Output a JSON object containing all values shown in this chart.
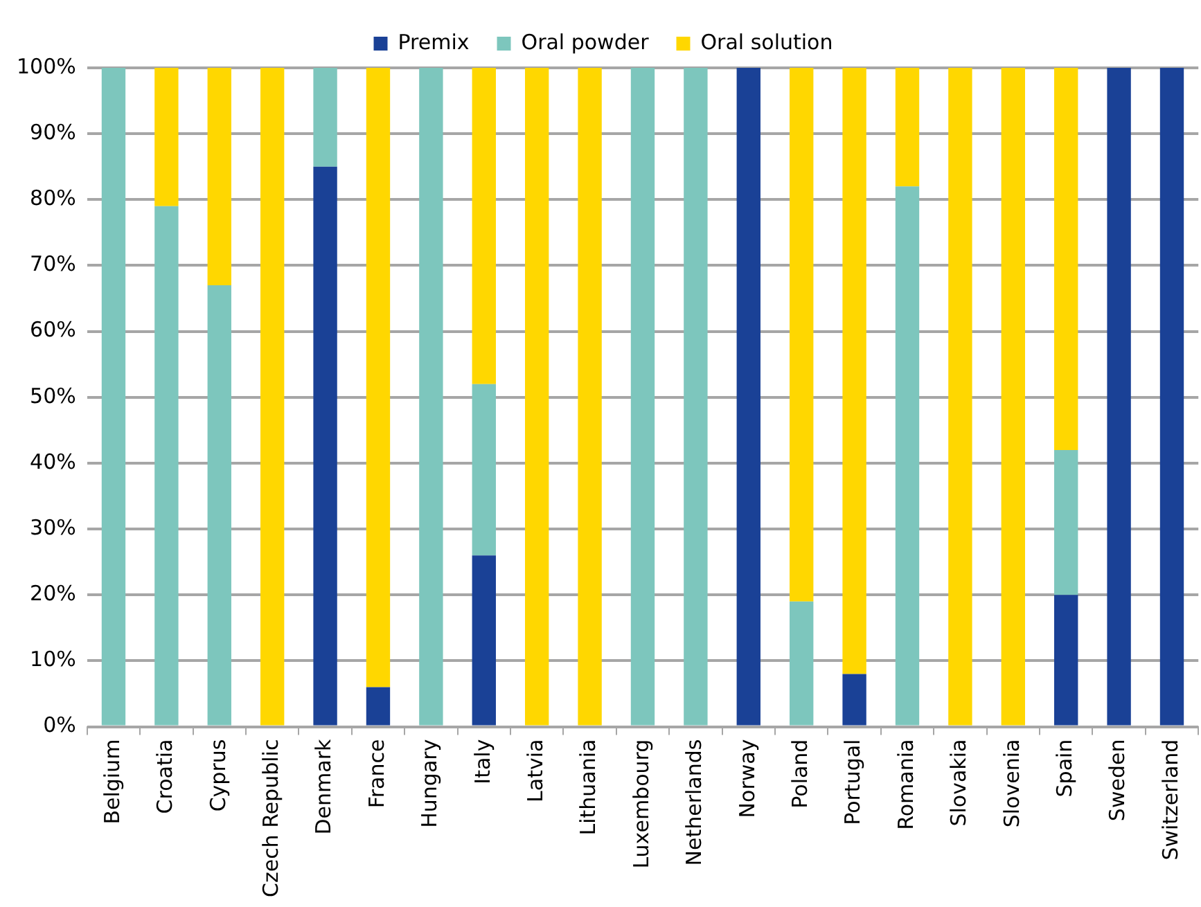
{
  "chart_data": {
    "type": "bar",
    "stacked": true,
    "categories": [
      "Belgium",
      "Croatia",
      "Cyprus",
      "Czech Republic",
      "Denmark",
      "France",
      "Hungary",
      "Italy",
      "Latvia",
      "Lithuania",
      "Luxembourg",
      "Netherlands",
      "Norway",
      "Poland",
      "Portugal",
      "Romania",
      "Slovakia",
      "Slovenia",
      "Spain",
      "Sweden",
      "Switzerland"
    ],
    "series": [
      {
        "name": "Premix",
        "color": "#1a4196",
        "values": [
          0,
          0,
          0,
          0,
          85,
          6,
          0,
          26,
          0,
          0,
          0,
          0,
          100,
          0,
          8,
          0,
          0,
          0,
          20,
          100,
          100
        ]
      },
      {
        "name": "Oral powder",
        "color": "#7dc6bd",
        "values": [
          100,
          79,
          67,
          0,
          15,
          0,
          100,
          26,
          0,
          0,
          100,
          100,
          0,
          19,
          0,
          82,
          0,
          0,
          22,
          0,
          0
        ]
      },
      {
        "name": "Oral solution",
        "color": "#ffd700",
        "values": [
          0,
          21,
          33,
          100,
          0,
          94,
          0,
          48,
          100,
          100,
          0,
          0,
          0,
          81,
          92,
          18,
          100,
          100,
          58,
          0,
          0
        ]
      }
    ],
    "ylim": [
      0,
      100
    ],
    "yticks": [
      {
        "value": 0,
        "label": "0%"
      },
      {
        "value": 10,
        "label": "10%"
      },
      {
        "value": 20,
        "label": "20%"
      },
      {
        "value": 30,
        "label": "30%"
      },
      {
        "value": 40,
        "label": "40%"
      },
      {
        "value": 50,
        "label": "50%"
      },
      {
        "value": 60,
        "label": "60%"
      },
      {
        "value": 70,
        "label": "70%"
      },
      {
        "value": 80,
        "label": "80%"
      },
      {
        "value": 90,
        "label": "90%"
      },
      {
        "value": 100,
        "label": "100%"
      }
    ],
    "grid": "y",
    "legend": "top"
  }
}
